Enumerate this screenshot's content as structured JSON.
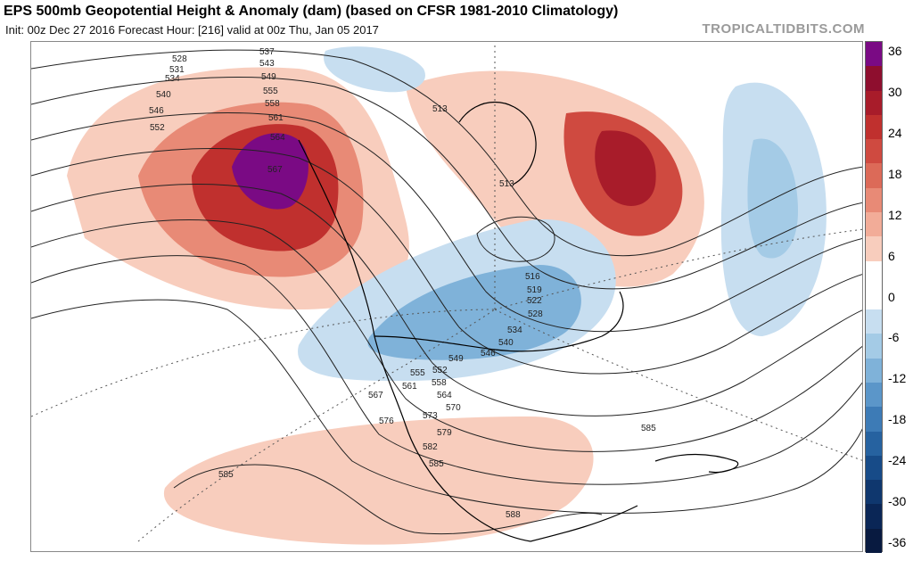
{
  "header": {
    "title": "EPS 500mb Geopotential Height & Anomaly (dam) (based on CFSR 1981-2010 Climatology)",
    "subtitle": "Init: 00z Dec 27 2016   Forecast Hour: [216]   valid at 00z Thu, Jan 05 2017",
    "credit": "TROPICALTIDBITS.COM"
  },
  "map": {
    "contour_labels": [
      "528",
      "531",
      "534",
      "540",
      "546",
      "552",
      "537",
      "543",
      "549",
      "555",
      "558",
      "561",
      "564",
      "567",
      "513",
      "513",
      "516",
      "519",
      "522",
      "528",
      "534",
      "540",
      "546",
      "549",
      "552",
      "555",
      "558",
      "561",
      "564",
      "567",
      "570",
      "573",
      "576",
      "579",
      "582",
      "585",
      "585",
      "585",
      "588"
    ]
  },
  "colorbar": {
    "ticks": [
      "36",
      "30",
      "24",
      "18",
      "12",
      "6",
      "0",
      "-6",
      "-12",
      "-18",
      "-24",
      "-30",
      "-36"
    ],
    "colors": [
      "#7a0a84",
      "#8e0e2e",
      "#a81c2a",
      "#c0302e",
      "#cf4a40",
      "#dc6a58",
      "#e88a76",
      "#f2ac98",
      "#f8cdbd",
      "#ffffff",
      "#ffffff",
      "#c7def0",
      "#a4cbe6",
      "#7fb2d9",
      "#5b96c9",
      "#3d7bb6",
      "#2662a0",
      "#174b88",
      "#0f376e",
      "#0a2656",
      "#081a40"
    ]
  }
}
